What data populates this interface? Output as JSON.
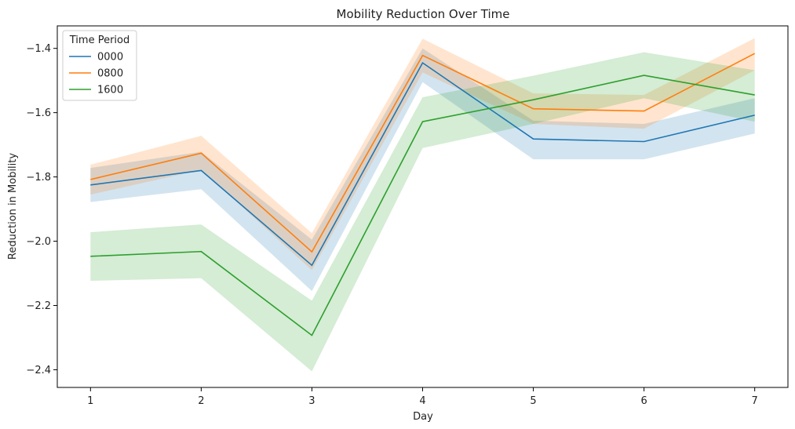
{
  "chart_data": {
    "type": "line",
    "title": "Mobility Reduction Over Time",
    "xlabel": "Day",
    "ylabel": "Reduction in Mobility",
    "x": [
      1,
      2,
      3,
      4,
      5,
      6,
      7
    ],
    "xlim": [
      0.7,
      7.3
    ],
    "ylim": [
      -2.455,
      -1.33
    ],
    "yticks": [
      -2.4,
      -2.2,
      -2.0,
      -1.8,
      -1.6,
      -1.4
    ],
    "ytick_labels": [
      "−2.4",
      "−2.2",
      "−2.0",
      "−1.8",
      "−1.6",
      "−1.4"
    ],
    "xtick_labels": [
      "1",
      "2",
      "3",
      "4",
      "5",
      "6",
      "7"
    ],
    "grid": false,
    "legend": {
      "title": "Time Period",
      "placement": "top-left"
    },
    "series": [
      {
        "name": "0000",
        "color": "#1f77b4",
        "values": [
          -1.825,
          -1.78,
          -2.075,
          -1.445,
          -1.682,
          -1.69,
          -1.608
        ],
        "ci_lower": [
          -1.878,
          -1.838,
          -2.155,
          -1.505,
          -1.745,
          -1.745,
          -1.665
        ],
        "ci_upper": [
          -1.772,
          -1.722,
          -1.995,
          -1.4,
          -1.625,
          -1.635,
          -1.555
        ]
      },
      {
        "name": "0800",
        "color": "#ff7f0e",
        "values": [
          -1.808,
          -1.726,
          -2.033,
          -1.422,
          -1.588,
          -1.595,
          -1.416
        ],
        "ci_lower": [
          -1.855,
          -1.778,
          -2.09,
          -1.475,
          -1.635,
          -1.65,
          -1.468
        ],
        "ci_upper": [
          -1.762,
          -1.672,
          -1.975,
          -1.37,
          -1.54,
          -1.545,
          -1.368
        ]
      },
      {
        "name": "1600",
        "color": "#2ca02c",
        "values": [
          -2.047,
          -2.032,
          -2.293,
          -1.628,
          -1.56,
          -1.484,
          -1.545
        ],
        "ci_lower": [
          -2.123,
          -2.115,
          -2.405,
          -1.71,
          -1.635,
          -1.555,
          -1.628
        ],
        "ci_upper": [
          -1.972,
          -1.948,
          -2.185,
          -1.552,
          -1.485,
          -1.412,
          -1.468
        ]
      }
    ]
  }
}
